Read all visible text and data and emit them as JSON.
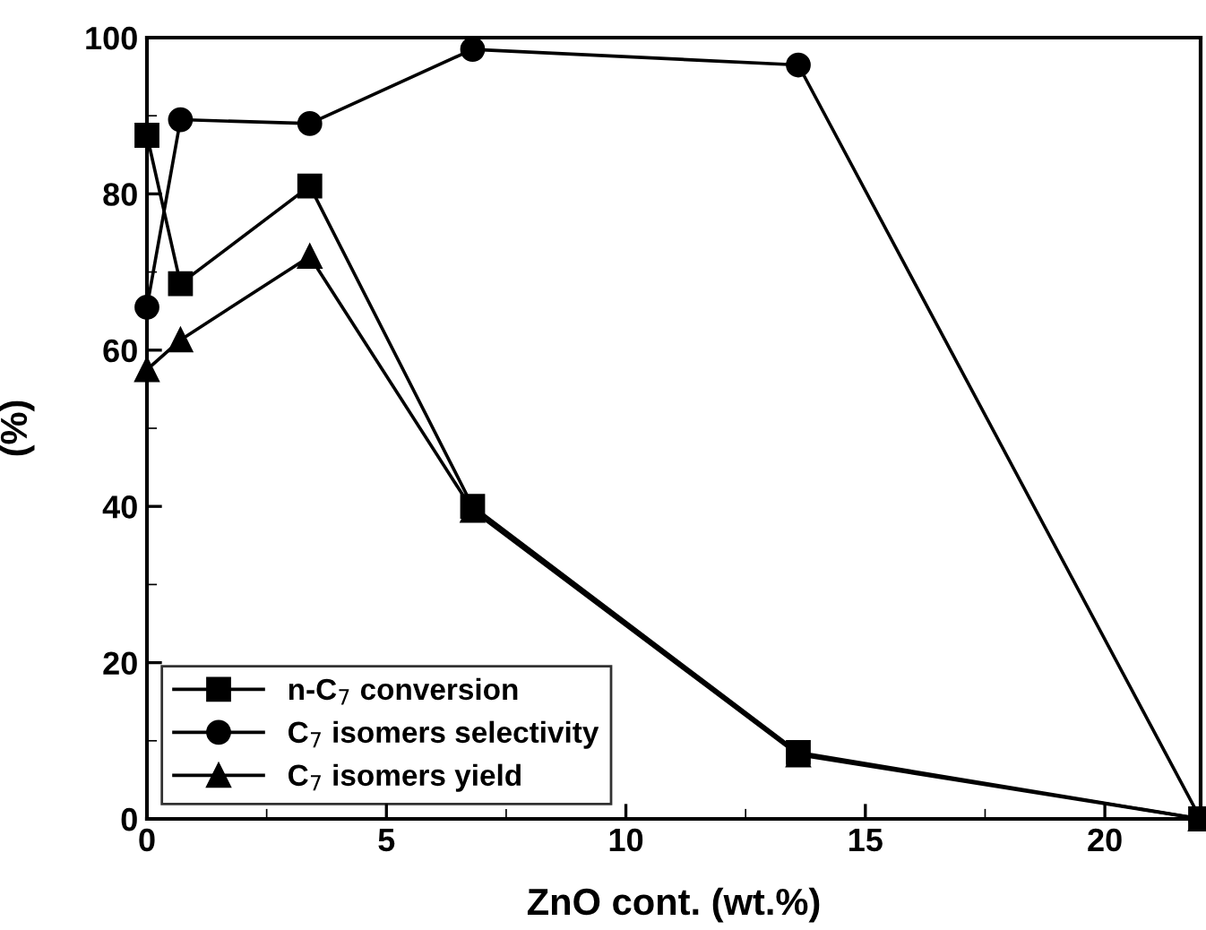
{
  "chart_data": {
    "type": "line",
    "xlabel": "ZnO cont. (wt.%)",
    "ylabel": "(%)",
    "x": [
      0,
      0.7,
      3.4,
      6.8,
      13.6,
      22
    ],
    "series": [
      {
        "name": "n-C$_{7}$ conversion",
        "color": "#000000",
        "marker": "square",
        "values": [
          87.5,
          68.5,
          81,
          40,
          8.5,
          0
        ]
      },
      {
        "name": "C$_{7}$ isomers selectivity",
        "color": "#000000",
        "marker": "circle",
        "values": [
          65.5,
          89.5,
          89,
          98.5,
          96.5,
          0
        ]
      },
      {
        "name": "C$_{7}$ isomers yield",
        "color": "#000000",
        "marker": "triangle",
        "values": [
          57.5,
          61.3,
          72,
          39.5,
          8.2,
          0
        ]
      }
    ],
    "xlim": [
      0,
      22
    ],
    "xticks": [
      0,
      5,
      10,
      15,
      20
    ],
    "ylim": [
      0,
      100
    ],
    "yticks": [
      0,
      20,
      40,
      60,
      80,
      100
    ],
    "grid": false,
    "legend": "bottom left",
    "line_style": "solid"
  }
}
